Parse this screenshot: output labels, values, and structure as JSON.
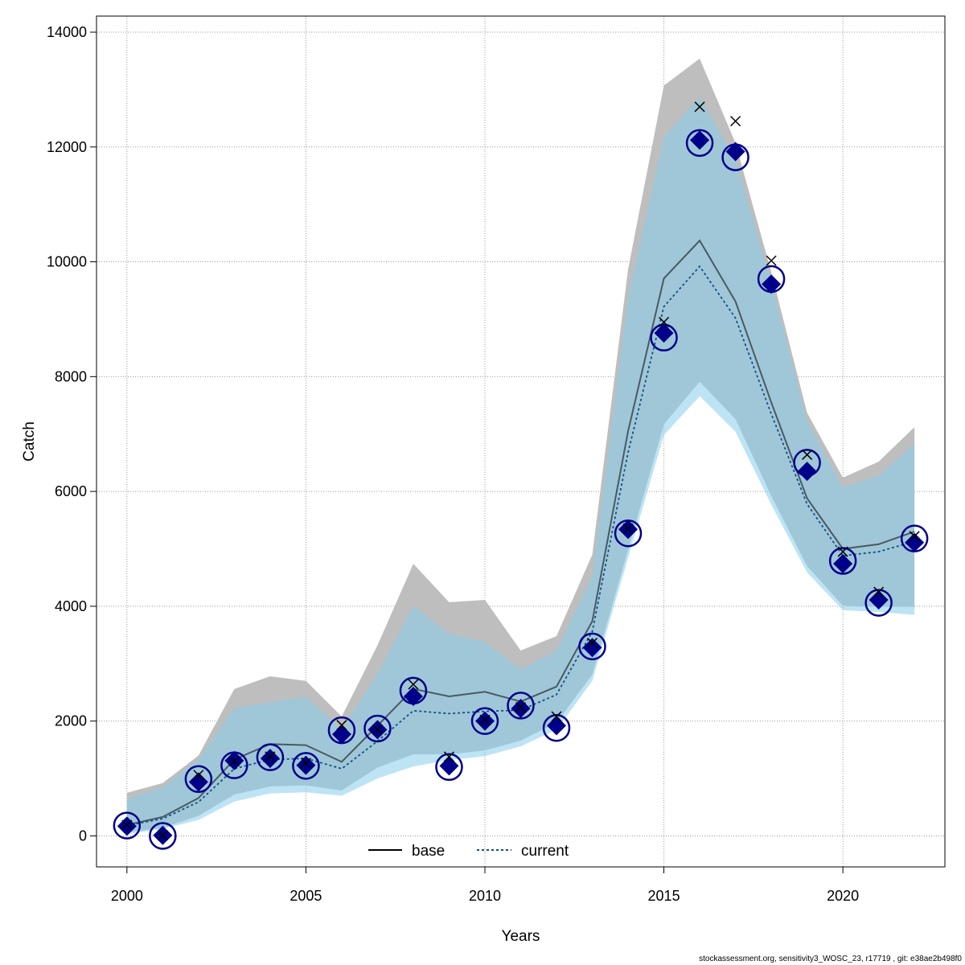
{
  "chart_data": {
    "type": "line",
    "xlabel": "Years",
    "ylabel": "Catch",
    "xlim": [
      1999.15,
      2022.85
    ],
    "ylim": [
      -540,
      14280
    ],
    "x_ticks": [
      2000,
      2005,
      2010,
      2015,
      2020
    ],
    "y_ticks": [
      0,
      2000,
      4000,
      6000,
      8000,
      10000,
      12000,
      14000
    ],
    "grid": true,
    "legend": {
      "placement": "bottom-center",
      "entries": [
        "base",
        "current"
      ]
    },
    "x": [
      2000,
      2001,
      2002,
      2003,
      2004,
      2005,
      2006,
      2007,
      2008,
      2009,
      2010,
      2011,
      2012,
      2013,
      2014,
      2015,
      2016,
      2017,
      2018,
      2019,
      2020,
      2021,
      2022
    ],
    "series": [
      {
        "name": "base",
        "color": "#000000",
        "line_style": "solid",
        "values": [
          190,
          330,
          660,
          1330,
          1600,
          1580,
          1290,
          1920,
          2560,
          2430,
          2510,
          2340,
          2600,
          3740,
          7050,
          9710,
          10370,
          9310,
          7550,
          5880,
          5000,
          5080,
          5300
        ],
        "interval_lower": [
          60,
          140,
          350,
          720,
          860,
          880,
          790,
          1190,
          1420,
          1420,
          1490,
          1660,
          1970,
          2810,
          4980,
          7170,
          7910,
          7260,
          5920,
          4700,
          4010,
          3990,
          3990
        ],
        "interval_upper": [
          750,
          920,
          1400,
          2560,
          2780,
          2700,
          2080,
          3320,
          4740,
          4070,
          4110,
          3230,
          3480,
          4900,
          9870,
          13070,
          13540,
          12070,
          9820,
          7370,
          6240,
          6520,
          7120
        ],
        "interval_color": "#bebebe",
        "expected_marker": "x",
        "expected_values": [
          190,
          10,
          1060,
          1300,
          1380,
          1270,
          1930,
          1850,
          2640,
          1380,
          2020,
          2240,
          2080,
          3360,
          5350,
          8950,
          12700,
          12450,
          10020,
          6640,
          4950,
          4250,
          5220
        ]
      },
      {
        "name": "current",
        "color": "#104e8b",
        "line_style": "dotted",
        "values": [
          180,
          300,
          590,
          1170,
          1330,
          1350,
          1170,
          1650,
          2180,
          2130,
          2170,
          2190,
          2460,
          3560,
          6680,
          9220,
          9920,
          9020,
          7350,
          5780,
          4880,
          4950,
          5130
        ],
        "interval_lower": [
          30,
          120,
          280,
          600,
          740,
          760,
          700,
          1000,
          1210,
          1320,
          1390,
          1560,
          1850,
          2700,
          4840,
          6980,
          7660,
          7040,
          5770,
          4590,
          3930,
          3900,
          3850
        ],
        "interval_upper": [
          640,
          850,
          1330,
          2230,
          2330,
          2420,
          1860,
          2820,
          4000,
          3520,
          3380,
          2900,
          3230,
          4530,
          9400,
          12180,
          12870,
          11780,
          9650,
          7230,
          6070,
          6280,
          6830
        ],
        "interval_color": "#87ceeb",
        "expected_marker": "diamond",
        "expected_values": [
          170,
          10,
          940,
          1310,
          1350,
          1230,
          1770,
          1850,
          2430,
          1220,
          2000,
          2220,
          1920,
          3280,
          5340,
          8760,
          12120,
          11920,
          9610,
          6350,
          4740,
          4110,
          5110
        ]
      }
    ],
    "observed": {
      "marker": "open-circle",
      "color": "#00008b",
      "values": [
        180,
        0,
        990,
        1230,
        1370,
        1220,
        1840,
        1870,
        2530,
        1200,
        2000,
        2270,
        1880,
        3300,
        5270,
        8680,
        12070,
        11820,
        9700,
        6500,
        4790,
        4060,
        5180
      ]
    }
  },
  "footer": "stockassessment.org, sensitivity3_WOSC_23, r17719 , git: e38ae2b498f0"
}
